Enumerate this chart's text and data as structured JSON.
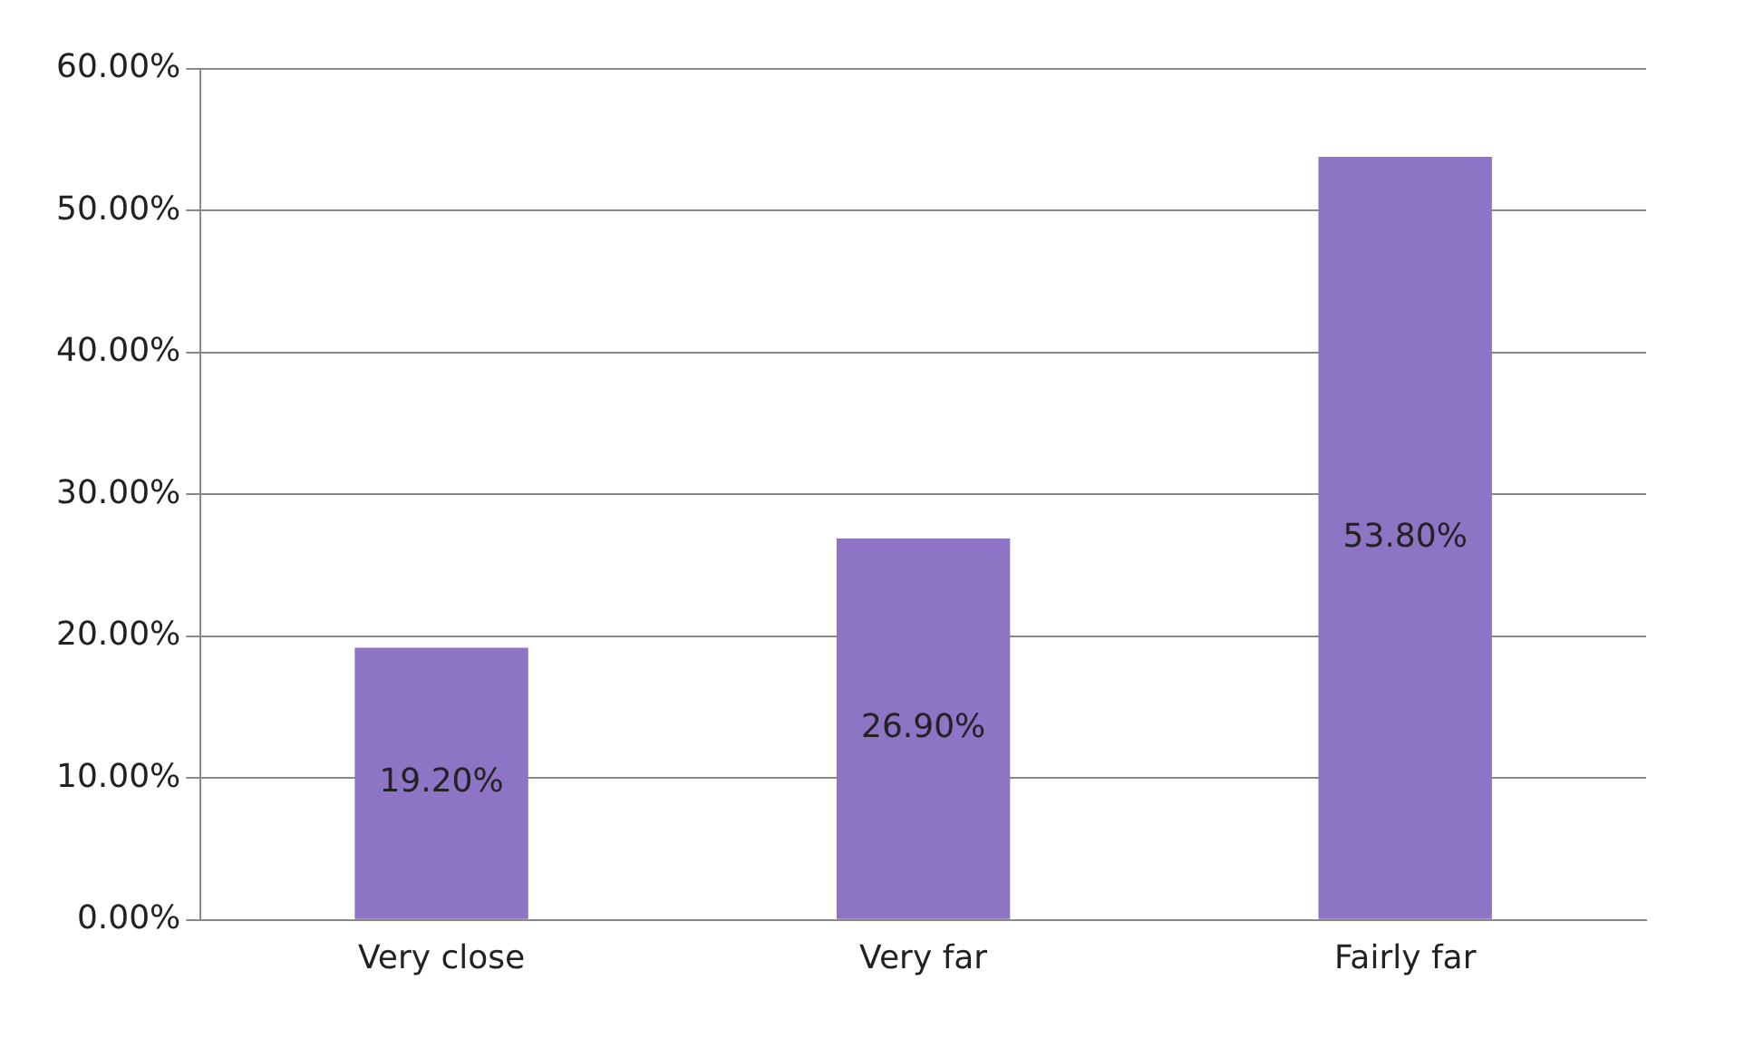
{
  "chart_data": {
    "type": "bar",
    "categories": [
      "Very close",
      "Very far",
      "Fairly far"
    ],
    "values": [
      19.2,
      26.9,
      53.8
    ],
    "value_labels": [
      "19.20%",
      "26.90%",
      "53.80%"
    ],
    "color": "#8e74c4",
    "ylim": [
      0,
      60
    ],
    "yticks": [
      {
        "value": 0,
        "label": "0.00%"
      },
      {
        "value": 10,
        "label": "10.00%"
      },
      {
        "value": 20,
        "label": "20.00%"
      },
      {
        "value": 30,
        "label": "30.00%"
      },
      {
        "value": 40,
        "label": "40.00%"
      },
      {
        "value": 50,
        "label": "50.00%"
      },
      {
        "value": 60,
        "label": "60.00%"
      }
    ],
    "grid": "y"
  }
}
